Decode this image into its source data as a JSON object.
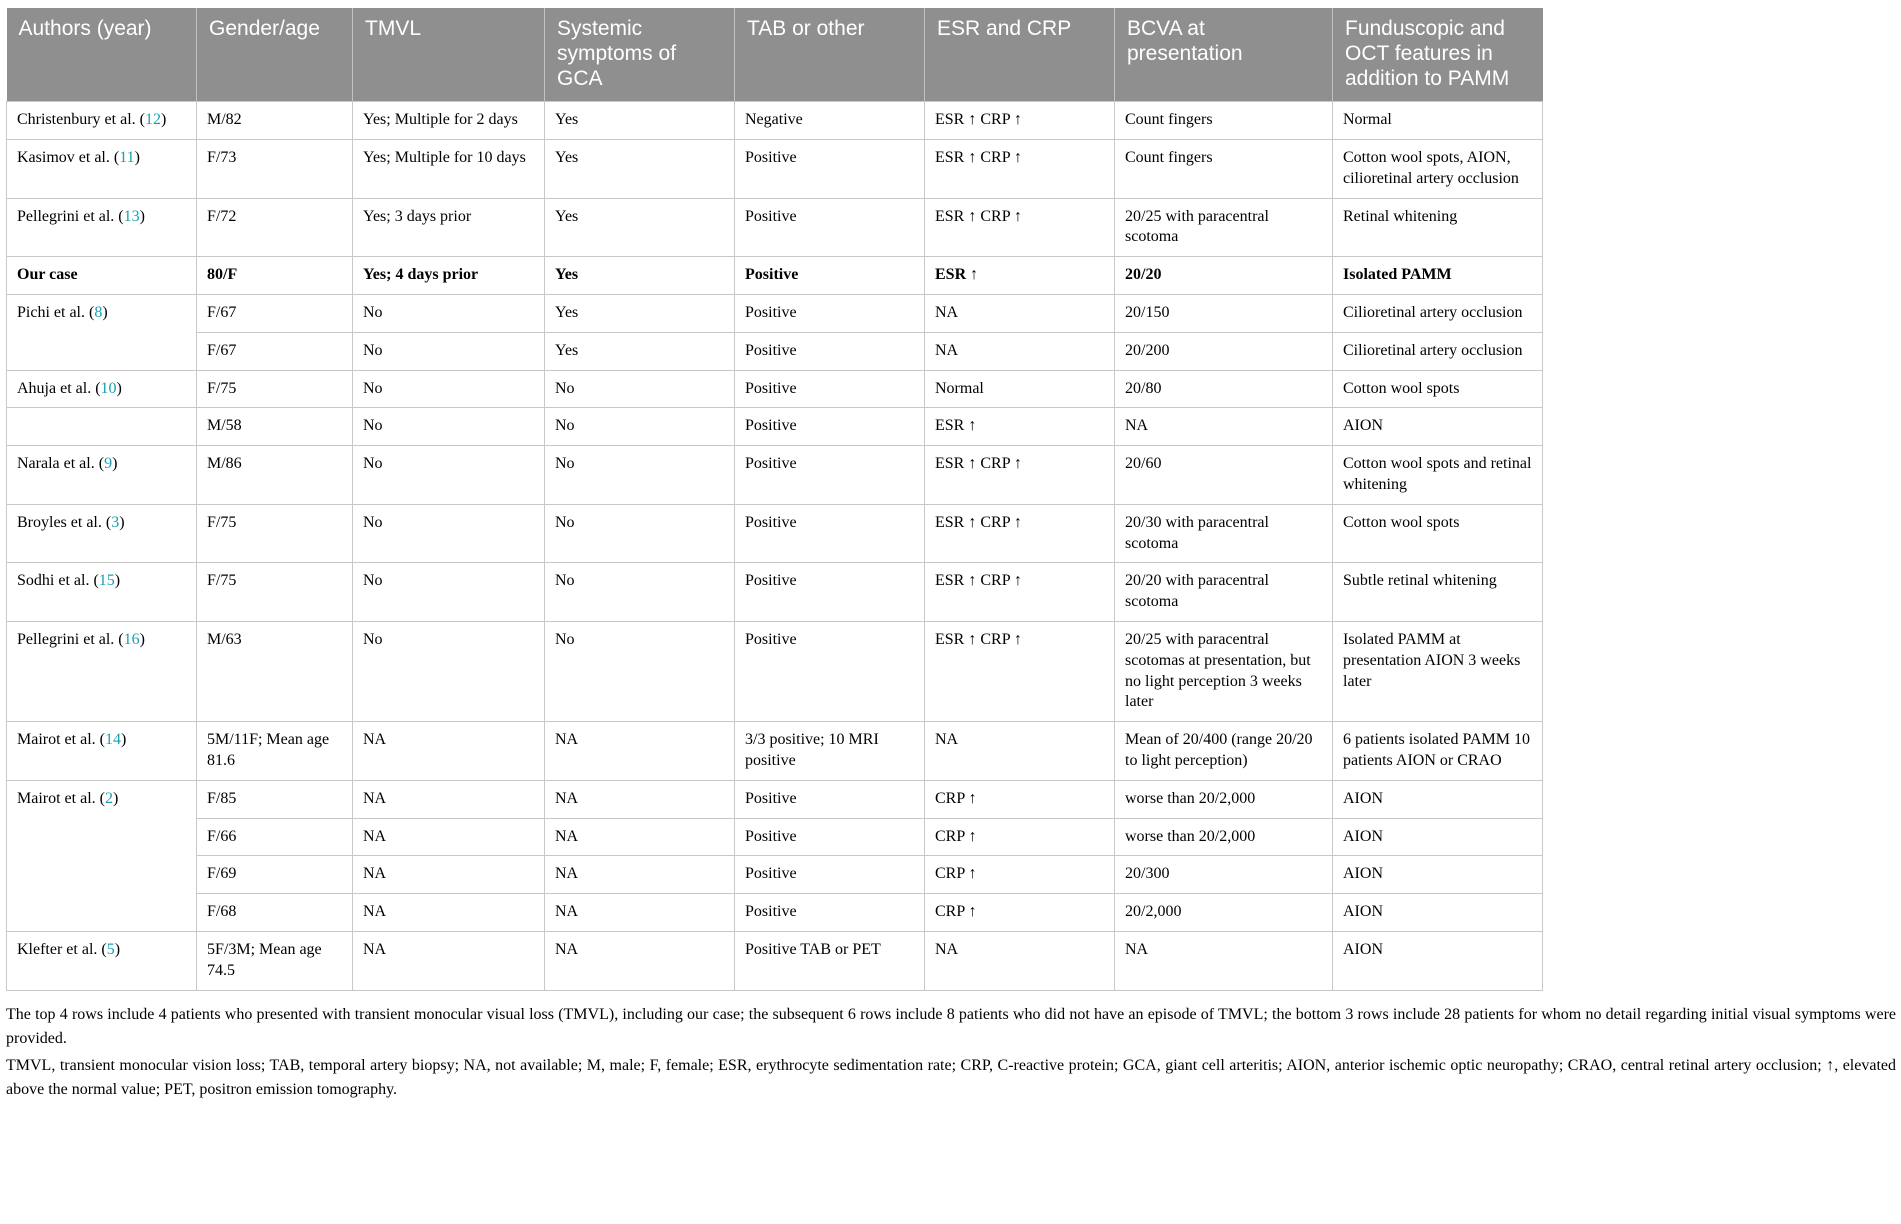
{
  "colors": {
    "header-bg": "#8f8f8f",
    "border": "#c8c8c8",
    "citation": "#19a0b3"
  },
  "table": {
    "columns": [
      "Authors (year)",
      "Gender/age",
      "TMVL",
      "Systemic symptoms of GCA",
      "TAB or other",
      "ESR and CRP",
      "BCVA at presentation",
      "Funduscopic and OCT features in addition to PAMM"
    ],
    "column_keys": [
      "authors",
      "gender-age",
      "tmvl",
      "systemic-gca",
      "tab",
      "esr-crp",
      "bcva",
      "funduscopic-oct"
    ],
    "rows": [
      {
        "author": "Christenbury et al.",
        "ref": "12",
        "bold": false,
        "cells": [
          "M/82",
          "Yes; Multiple for 2 days",
          "Yes",
          "Negative",
          "ESR ↑ CRP ↑",
          "Count fingers",
          "Normal"
        ]
      },
      {
        "author": "Kasimov et al.",
        "ref": "11",
        "bold": false,
        "cells": [
          "F/73",
          "Yes; Multiple for 10 days",
          "Yes",
          "Positive",
          "ESR ↑ CRP ↑",
          "Count fingers",
          "Cotton wool spots, AION, cilioretinal artery occlusion"
        ]
      },
      {
        "author": "Pellegrini et al.",
        "ref": "13",
        "bold": false,
        "cells": [
          "F/72",
          "Yes; 3 days prior",
          "Yes",
          "Positive",
          "ESR ↑ CRP ↑",
          "20/25 with paracentral scotoma",
          "Retinal whitening"
        ]
      },
      {
        "author": "Our case",
        "ref": null,
        "bold": true,
        "cells": [
          "80/F",
          "Yes; 4 days prior",
          "Yes",
          "Positive",
          "ESR ↑",
          "20/20",
          "Isolated PAMM"
        ]
      },
      {
        "author": "Pichi et al.",
        "ref": "8",
        "rowspan": 2,
        "bold": false,
        "cells": [
          "F/67",
          "No",
          "Yes",
          "Positive",
          "NA",
          "20/150",
          "Cilioretinal artery occlusion"
        ]
      },
      {
        "author": null,
        "bold": false,
        "cells": [
          "F/67",
          "No",
          "Yes",
          "Positive",
          "NA",
          "20/200",
          "Cilioretinal artery occlusion"
        ]
      },
      {
        "author": "Ahuja et al.",
        "ref": "10",
        "bold": false,
        "cells": [
          "F/75",
          "No",
          "No",
          "Positive",
          "Normal",
          "20/80",
          "Cotton wool spots"
        ]
      },
      {
        "author": "",
        "ref": null,
        "bold": false,
        "cells": [
          "M/58",
          "No",
          "No",
          "Positive",
          "ESR ↑",
          "NA",
          "AION"
        ]
      },
      {
        "author": "Narala et al.",
        "ref": "9",
        "bold": false,
        "cells": [
          "M/86",
          "No",
          "No",
          "Positive",
          "ESR ↑ CRP ↑",
          "20/60",
          "Cotton wool spots and retinal whitening"
        ]
      },
      {
        "author": "Broyles et al.",
        "ref": "3",
        "bold": false,
        "cells": [
          "F/75",
          "No",
          "No",
          "Positive",
          "ESR ↑ CRP ↑",
          "20/30 with paracentral scotoma",
          "Cotton wool spots"
        ]
      },
      {
        "author": "Sodhi et al.",
        "ref": "15",
        "bold": false,
        "cells": [
          "F/75",
          "No",
          "No",
          "Positive",
          "ESR ↑ CRP ↑",
          "20/20 with paracentral scotoma",
          "Subtle retinal whitening"
        ]
      },
      {
        "author": "Pellegrini et al.",
        "ref": "16",
        "bold": false,
        "cells": [
          "M/63",
          "No",
          "No",
          "Positive",
          "ESR ↑ CRP ↑",
          "20/25 with paracentral scotomas at presentation, but no light perception 3 weeks later",
          "Isolated PAMM at presentation AION 3 weeks later"
        ]
      },
      {
        "author": "Mairot et al.",
        "ref": "14",
        "bold": false,
        "cells": [
          "5M/11F; Mean age 81.6",
          "NA",
          "NA",
          "3/3 positive; 10 MRI positive",
          "NA",
          "Mean of 20/400 (range 20/20 to light perception)",
          "6 patients isolated PAMM 10 patients AION or CRAO"
        ]
      },
      {
        "author": "Mairot et al.",
        "ref": "2",
        "rowspan": 4,
        "bold": false,
        "cells": [
          "F/85",
          "NA",
          "NA",
          "Positive",
          "CRP ↑",
          "worse than 20/2,000",
          "AION"
        ]
      },
      {
        "author": null,
        "bold": false,
        "cells": [
          "F/66",
          "NA",
          "NA",
          "Positive",
          "CRP ↑",
          "worse than 20/2,000",
          "AION"
        ]
      },
      {
        "author": null,
        "bold": false,
        "cells": [
          "F/69",
          "NA",
          "NA",
          "Positive",
          "CRP ↑",
          "20/300",
          "AION"
        ]
      },
      {
        "author": null,
        "bold": false,
        "cells": [
          "F/68",
          "NA",
          "NA",
          "Positive",
          "CRP ↑",
          "20/2,000",
          "AION"
        ]
      },
      {
        "author": "Klefter et al.",
        "ref": "5",
        "bold": false,
        "cells": [
          "5F/3M; Mean age 74.5",
          "NA",
          "NA",
          "Positive TAB or PET",
          "NA",
          "NA",
          "AION"
        ]
      }
    ]
  },
  "footnotes": [
    "The top 4 rows include 4 patients who presented with transient monocular visual loss (TMVL), including our case; the subsequent 6 rows include 8 patients who did not have an episode of TMVL; the bottom 3 rows include 28 patients for whom no detail regarding initial visual symptoms were provided.",
    "TMVL, transient monocular vision loss; TAB, temporal artery biopsy; NA, not available; M, male; F, female; ESR, erythrocyte sedimentation rate; CRP, C-reactive protein; GCA, giant cell arteritis; AION, anterior ischemic optic neuropathy; CRAO, central retinal artery occlusion; ↑, elevated above the normal value; PET, positron emission tomography."
  ]
}
